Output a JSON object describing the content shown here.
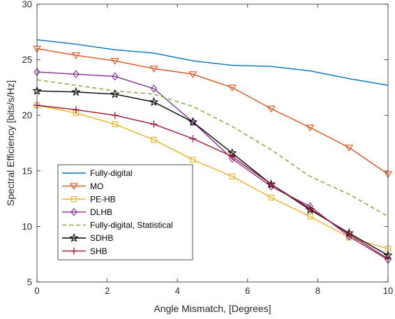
{
  "chart_data": {
    "type": "line",
    "title": "",
    "xlabel": "Angle Mismatch, [Degrees]",
    "ylabel": "Spectral Efficiency [bits/s/Hz]",
    "xlim": [
      0,
      10
    ],
    "ylim": [
      5,
      30
    ],
    "xticks": [
      0,
      2,
      4,
      6,
      8,
      10
    ],
    "yticks": [
      5,
      10,
      15,
      20,
      25,
      30
    ],
    "grid": false,
    "legend_position": "bottom-left",
    "x": [
      0,
      1.11,
      2.22,
      3.33,
      4.44,
      5.56,
      6.67,
      7.78,
      8.89,
      10
    ],
    "series": [
      {
        "name": "Fully-digital",
        "color": "#0072BD",
        "marker": "none",
        "dash": "solid",
        "values": [
          26.8,
          26.4,
          25.9,
          25.6,
          24.9,
          24.5,
          24.4,
          24.0,
          23.3,
          22.7
        ]
      },
      {
        "name": "MO",
        "color": "#D95319",
        "marker": "triangle-down",
        "dash": "solid",
        "values": [
          26.0,
          25.4,
          24.9,
          24.2,
          23.7,
          22.5,
          20.6,
          18.9,
          17.1,
          14.7
        ]
      },
      {
        "name": "PE-HB",
        "color": "#EDB120",
        "marker": "square",
        "dash": "solid",
        "values": [
          20.9,
          20.2,
          19.2,
          17.8,
          16.0,
          14.5,
          12.6,
          10.9,
          9.0,
          8.0
        ]
      },
      {
        "name": "DLHB",
        "color": "#7E2F8E",
        "marker": "diamond",
        "dash": "solid",
        "values": [
          23.9,
          23.7,
          23.5,
          22.4,
          19.4,
          16.1,
          13.6,
          11.8,
          9.1,
          7.0
        ]
      },
      {
        "name": "Fully-digital, Statistical",
        "color": "#77AC30",
        "marker": "none",
        "dash": "dashed",
        "values": [
          23.2,
          22.7,
          22.2,
          21.9,
          20.8,
          19.0,
          16.9,
          14.5,
          12.9,
          10.9
        ]
      },
      {
        "name": "SDHB",
        "color": "#000000",
        "marker": "star",
        "dash": "solid",
        "values": [
          22.2,
          22.1,
          21.9,
          21.2,
          19.4,
          16.6,
          13.8,
          11.5,
          9.4,
          7.4
        ]
      },
      {
        "name": "SHB",
        "color": "#A2142F",
        "marker": "plus",
        "dash": "solid",
        "values": [
          20.9,
          20.5,
          20.0,
          19.2,
          17.9,
          16.3,
          13.8,
          11.6,
          9.3,
          7.1
        ]
      }
    ]
  }
}
